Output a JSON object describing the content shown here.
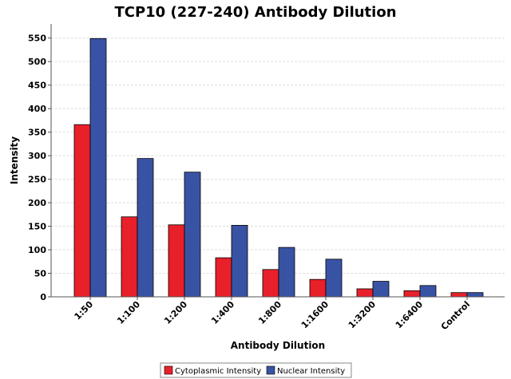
{
  "chart_data": {
    "type": "bar",
    "title": "TCP10 (227-240) Antibody Dilution",
    "xlabel": "Antibody Dilution",
    "ylabel": "Intensity",
    "categories": [
      "1:50",
      "1:100",
      "1:200",
      "1:400",
      "1:800",
      "1:1600",
      "1:3200",
      "1:6400",
      "Control"
    ],
    "series": [
      {
        "name": "Cytoplasmic Intensity",
        "color": "#e8202a",
        "values": [
          366,
          170,
          153,
          83,
          58,
          37,
          17,
          13,
          9
        ]
      },
      {
        "name": "Nuclear Intensity",
        "color": "#3953a4",
        "values": [
          549,
          294,
          265,
          152,
          105,
          80,
          33,
          24,
          9
        ]
      }
    ],
    "ylim": [
      0,
      580
    ],
    "yticks": [
      0,
      50,
      100,
      150,
      200,
      250,
      300,
      350,
      400,
      450,
      500,
      550
    ],
    "grid": true,
    "legend_position": "bottom-center"
  }
}
